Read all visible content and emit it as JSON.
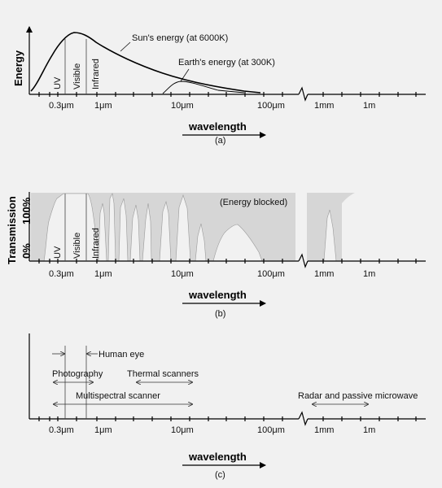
{
  "tick_labels": [
    "0.3μm",
    "1μm",
    "10μm",
    "100μm",
    "1mm",
    "1m"
  ],
  "wavelength_label": "wavelength",
  "panel_a": {
    "caption": "(a)",
    "y_label": "Energy",
    "sun_label": "Sun's energy (at 6000K)",
    "earth_label": "Earth's energy (at 300K)",
    "bands": [
      "UV",
      "Visible",
      "Infrared"
    ]
  },
  "panel_b": {
    "caption": "(b)",
    "y_label": "Transmission",
    "y_top": "100%",
    "y_bottom": "0%",
    "blocked_label": "(Energy blocked)",
    "bands": [
      "UV",
      "Visible",
      "Infrared"
    ]
  },
  "panel_c": {
    "caption": "(c)",
    "human_eye": "Human eye",
    "photography": "Photography",
    "thermal": "Thermal scanners",
    "multispectral": "Multispectral scanner",
    "radar": "Radar and passive microwave"
  },
  "colors": {
    "blocked_fill": "#d6d6d6",
    "background": "#f1f1f1",
    "line": "#000000"
  }
}
